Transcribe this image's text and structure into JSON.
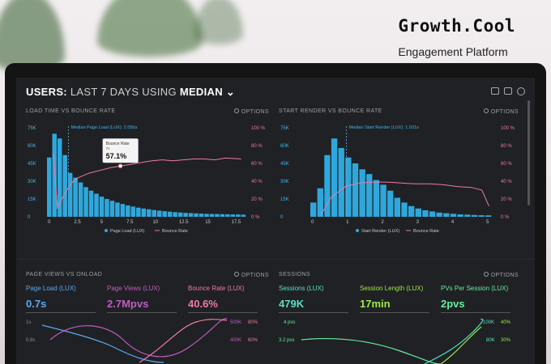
{
  "brand": {
    "title": "Growth.Cool",
    "subtitle": "Engagement Platform"
  },
  "header": {
    "prefix": "USERS:",
    "range": "LAST 7 DAYS",
    "using": "USING",
    "stat": "MEDIAN"
  },
  "panels": {
    "load_time": {
      "title": "LOAD TIME VS BOUNCE RATE",
      "options": "OPTIONS",
      "median_label": "Median Page Load (LUX): 2.056s",
      "tooltip_label": "Bounce Rate",
      "tooltip_sub": "7s",
      "tooltip_value": "57.1%",
      "legend_a": "Page Load (LUX)",
      "legend_b": "Bounce Rate"
    },
    "start_render": {
      "title": "START RENDER VS BOUNCE RATE",
      "options": "OPTIONS",
      "median_label": "Median Start Render (LUX): 1.031s",
      "legend_a": "Start Render (LUX)",
      "legend_b": "Bounce Rate"
    },
    "page_views": {
      "title": "PAGE VIEWS VS ONLOAD",
      "options": "OPTIONS",
      "metrics": [
        {
          "label": "Page Load (LUX)",
          "value": "0.7s",
          "color": "#5aa9ee"
        },
        {
          "label": "Page Views (LUX)",
          "value": "2.7Mpvs",
          "color": "#c15cc1"
        },
        {
          "label": "Bounce Rate (LUX)",
          "value": "40.6%",
          "color": "#ee7aa6"
        }
      ],
      "left_ticks": [
        "1s",
        "0.8s"
      ],
      "right_ticks_a": [
        "500K",
        "400K"
      ],
      "right_ticks_b": [
        "80%",
        "60%"
      ]
    },
    "sessions": {
      "title": "SESSIONS",
      "options": "OPTIONS",
      "metrics": [
        {
          "label": "Sessions (LUX)",
          "value": "479K",
          "color": "#58e0c0"
        },
        {
          "label": "Session Length (LUX)",
          "value": "17min",
          "color": "#9ee84a"
        },
        {
          "label": "PVs Per Session (LUX)",
          "value": "2pvs",
          "color": "#64f09a"
        }
      ],
      "left_ticks": [
        "4 pvs",
        "3.2 pvs"
      ],
      "right_ticks_a": [
        "100K",
        "80K"
      ],
      "right_ticks_b": [
        "40%",
        "30%"
      ]
    }
  },
  "chart_data": [
    {
      "type": "bar",
      "title": "LOAD TIME VS BOUNCE RATE",
      "x_ticks": [
        "0",
        "2.5",
        "5",
        "7.5",
        "10",
        "12.5",
        "15",
        "17.5"
      ],
      "y_ticks_left": [
        "75K",
        "60K",
        "45K",
        "30K",
        "15K",
        "0"
      ],
      "y_ticks_right": [
        "100 %",
        "80 %",
        "60 %",
        "40 %",
        "20 %",
        "0 %"
      ],
      "ylim": [
        0,
        75000
      ],
      "bar_width": 0.5,
      "x": [
        0,
        0.5,
        1,
        1.5,
        2,
        2.5,
        3,
        3.5,
        4,
        4.5,
        5,
        5.5,
        6,
        6.5,
        7,
        7.5,
        8,
        8.5,
        9,
        9.5,
        10,
        10.5,
        11,
        11.5,
        12,
        12.5,
        13,
        13.5,
        14,
        14.5,
        15,
        15.5,
        16,
        16.5,
        17,
        17.5,
        18,
        18.5
      ],
      "values": [
        50000,
        70000,
        66000,
        52000,
        37000,
        33000,
        29000,
        25000,
        22000,
        19500,
        17000,
        15000,
        13500,
        12000,
        10800,
        9600,
        8600,
        7700,
        7000,
        6300,
        5700,
        5200,
        4700,
        4300,
        3900,
        3600,
        3300,
        3100,
        2900,
        2700,
        2500,
        2400,
        2300,
        2200,
        2100,
        2000,
        1900,
        1800
      ],
      "series": [
        {
          "name": "Bounce Rate",
          "x": [
            0.6,
            1,
            1.5,
            2,
            2.5,
            3,
            4,
            5,
            6,
            7,
            8,
            9,
            10,
            11,
            12,
            13,
            14,
            15,
            16,
            17,
            18.5
          ],
          "y": [
            72,
            10,
            22,
            32,
            40,
            44,
            49,
            52,
            55,
            57.1,
            59,
            61,
            63,
            64,
            63,
            64,
            65,
            65,
            64,
            66,
            65
          ]
        }
      ],
      "median_x": 2.056
    },
    {
      "type": "bar",
      "title": "START RENDER VS BOUNCE RATE",
      "x_ticks": [
        "0",
        "1",
        "2",
        "3",
        "4",
        "5"
      ],
      "y_ticks_left": [
        "75K",
        "60K",
        "45K",
        "30K",
        "15K",
        "0"
      ],
      "y_ticks_right": [
        "100 %",
        "80 %",
        "60 %",
        "40 %",
        "20 %",
        "0 %"
      ],
      "ylim": [
        0,
        75000
      ],
      "bar_width": 0.2,
      "x": [
        0,
        0.2,
        0.4,
        0.6,
        0.8,
        1.0,
        1.2,
        1.4,
        1.6,
        1.8,
        2.0,
        2.2,
        2.4,
        2.6,
        2.8,
        3.0,
        3.2,
        3.4,
        3.6,
        3.8,
        4.0,
        4.2,
        4.4,
        4.6,
        4.8,
        5.0
      ],
      "values": [
        12000,
        24000,
        52000,
        66000,
        58000,
        50000,
        45000,
        40000,
        36000,
        31000,
        27000,
        22000,
        16000,
        12000,
        9000,
        7000,
        5500,
        4500,
        3500,
        3000,
        2500,
        2000,
        1800,
        1500,
        1300,
        1200
      ],
      "series": [
        {
          "name": "Bounce Rate",
          "x": [
            0.3,
            0.6,
            1,
            1.4,
            1.8,
            2.2,
            2.6,
            3,
            3.4,
            3.8,
            4.2,
            4.6,
            4.9,
            5.1
          ],
          "y": [
            2,
            22,
            34,
            38,
            39,
            39,
            38,
            37,
            37,
            36,
            34,
            33,
            30,
            12
          ]
        }
      ],
      "median_x": 1.031
    }
  ]
}
